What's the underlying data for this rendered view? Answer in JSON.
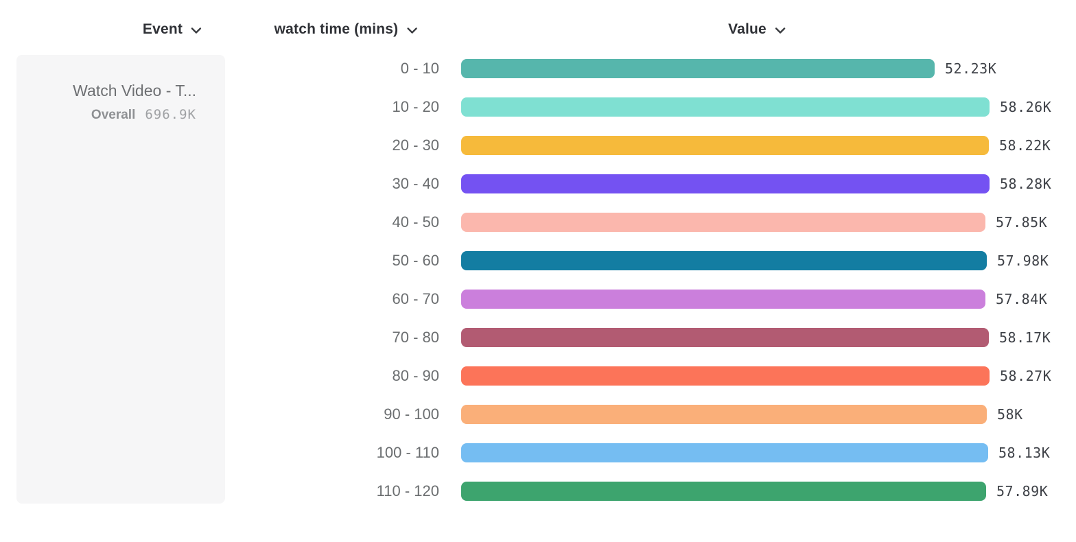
{
  "header": {
    "columns": [
      {
        "label": "Event"
      },
      {
        "label": "watch time (mins)"
      },
      {
        "label": "Value"
      }
    ]
  },
  "event_card": {
    "title": "Watch Video - T...",
    "overall_label": "Overall",
    "overall_value": "696.9K"
  },
  "icons": {
    "chevron": "chevron-down-icon"
  },
  "colors": {
    "header_text": "#2f3136",
    "bucket_label_text": "#6b6e70",
    "value_label_text": "#3e4147",
    "card_background": "#f6f6f7"
  },
  "chart_data": {
    "type": "bar",
    "orientation": "horizontal",
    "title": "",
    "xlabel": "Value",
    "ylabel": "watch time (mins)",
    "grid": false,
    "legend": "none",
    "event": "Watch Video - T...",
    "overall_total": "696.9K",
    "categories": [
      "0 - 10",
      "10 - 20",
      "20 - 30",
      "30 - 40",
      "40 - 50",
      "50 - 60",
      "60 - 70",
      "70 - 80",
      "80 - 90",
      "90 - 100",
      "100 - 110",
      "110 - 120"
    ],
    "values": [
      52230,
      58260,
      58220,
      58280,
      57850,
      57980,
      57840,
      58170,
      58270,
      58000,
      58130,
      57890
    ],
    "value_labels": [
      "52.23K",
      "58.26K",
      "58.22K",
      "58.28K",
      "57.85K",
      "57.98K",
      "57.84K",
      "58.17K",
      "58.27K",
      "58K",
      "58.13K",
      "57.89K"
    ],
    "bar_colors": [
      "#56b6ac",
      "#7fe0d2",
      "#f6ba3b",
      "#7452f2",
      "#fbb7ad",
      "#137da2",
      "#cb7fdc",
      "#b25b72",
      "#fc7459",
      "#faaf79",
      "#75bdf2",
      "#3da46e"
    ]
  }
}
